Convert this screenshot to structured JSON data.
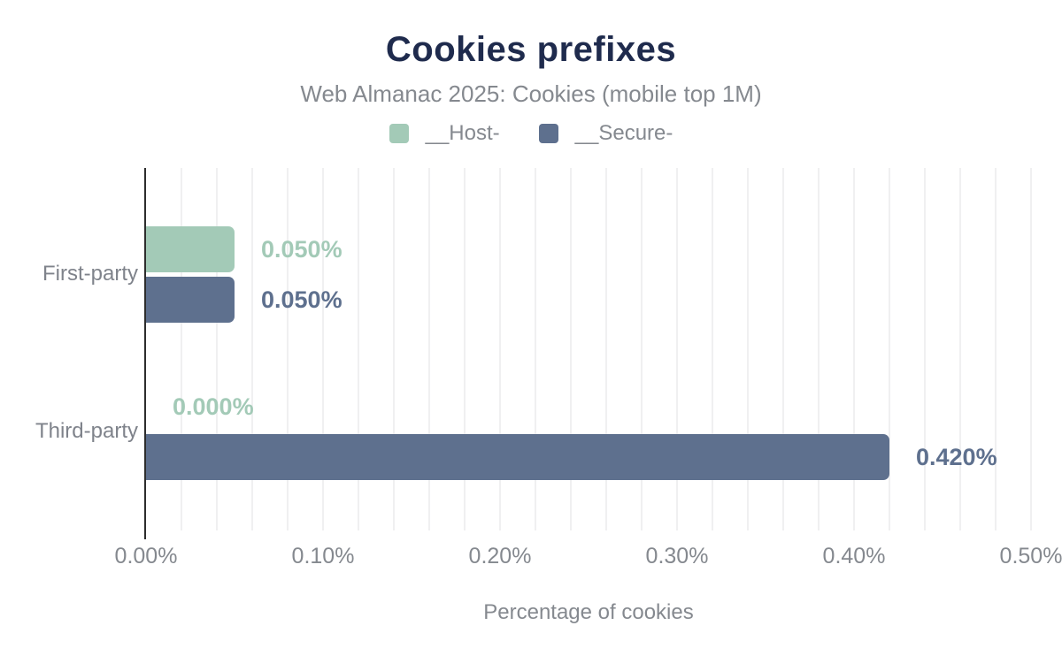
{
  "chart_data": {
    "type": "bar",
    "orientation": "horizontal",
    "title": "Cookies prefixes",
    "subtitle": "Web Almanac 2025: Cookies (mobile top 1M)",
    "xlabel": "Percentage of cookies",
    "categories": [
      "First-party",
      "Third-party"
    ],
    "series": [
      {
        "name": "__Host-",
        "color": "#a3cab7",
        "values": [
          0.05,
          0.0
        ],
        "labels": [
          "0.050%",
          "0.000%"
        ]
      },
      {
        "name": "__Secure-",
        "color": "#5e708e",
        "values": [
          0.05,
          0.42
        ],
        "labels": [
          "0.050%",
          "0.420%"
        ]
      }
    ],
    "xlim": [
      0,
      0.5
    ],
    "x_ticks": [
      "0.00%",
      "0.10%",
      "0.20%",
      "0.30%",
      "0.40%",
      "0.50%"
    ],
    "x_tick_step": 0.1,
    "minor_grid_step": 0.02,
    "grid": "vertical-minor",
    "legend_position": "top",
    "value_labels_shown": true
  },
  "colors": {
    "title": "#1f2b4d",
    "muted_text": "#85898f",
    "category_text": "#7f838b",
    "gridline": "#f0f0f1",
    "axis_line": "#2d2d2d",
    "background": "#ffffff"
  }
}
